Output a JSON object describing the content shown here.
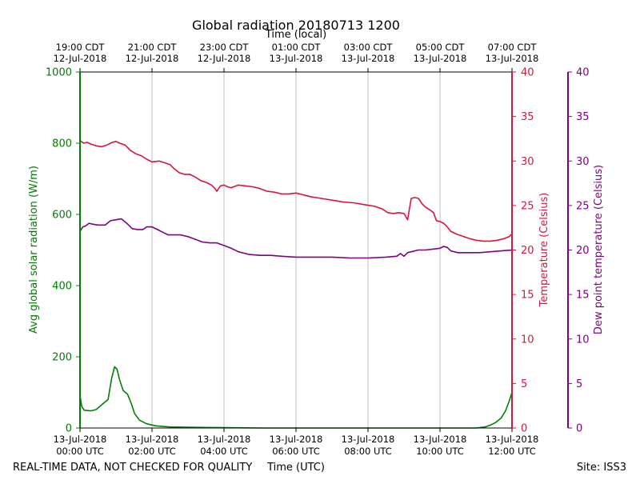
{
  "chart_data": {
    "type": "line",
    "title": "Global radiation 20180713 1200",
    "xlabel_top": "Time (local)",
    "xlabel_bottom": "Time (UTC)",
    "footer_left": "REAL-TIME DATA, NOT CHECKED FOR QUALITY",
    "footer_right": "Site: ISS3",
    "x_range_hours": [
      0,
      12
    ],
    "top_ticks": [
      {
        "h": 0,
        "line1": "19:00 CDT",
        "line2": "12-Jul-2018"
      },
      {
        "h": 2,
        "line1": "21:00 CDT",
        "line2": "12-Jul-2018"
      },
      {
        "h": 4,
        "line1": "23:00 CDT",
        "line2": "12-Jul-2018"
      },
      {
        "h": 6,
        "line1": "01:00 CDT",
        "line2": "13-Jul-2018"
      },
      {
        "h": 8,
        "line1": "03:00 CDT",
        "line2": "13-Jul-2018"
      },
      {
        "h": 10,
        "line1": "05:00 CDT",
        "line2": "13-Jul-2018"
      },
      {
        "h": 12,
        "line1": "07:00 CDT",
        "line2": "13-Jul-2018"
      }
    ],
    "bottom_ticks": [
      {
        "h": 0,
        "line1": "13-Jul-2018",
        "line2": "00:00 UTC"
      },
      {
        "h": 2,
        "line1": "13-Jul-2018",
        "line2": "02:00 UTC"
      },
      {
        "h": 4,
        "line1": "13-Jul-2018",
        "line2": "04:00 UTC"
      },
      {
        "h": 6,
        "line1": "13-Jul-2018",
        "line2": "06:00 UTC"
      },
      {
        "h": 8,
        "line1": "13-Jul-2018",
        "line2": "08:00 UTC"
      },
      {
        "h": 10,
        "line1": "13-Jul-2018",
        "line2": "10:00 UTC"
      },
      {
        "h": 12,
        "line1": "13-Jul-2018",
        "line2": "12:00 UTC"
      }
    ],
    "axes": {
      "radiation": {
        "label": "Avg global solar radiation (W/m)",
        "range": [
          0,
          1000
        ],
        "ticks": [
          0,
          200,
          400,
          600,
          800,
          1000
        ],
        "color": "#008000"
      },
      "temperature": {
        "label": "Temperature (Celsius)",
        "range": [
          0,
          40
        ],
        "ticks": [
          0,
          5,
          10,
          15,
          20,
          25,
          30,
          35,
          40
        ],
        "color": "#dc143c"
      },
      "dewpoint": {
        "label": "Dew point temperature (Celsius)",
        "range": [
          0,
          40
        ],
        "ticks": [
          0,
          5,
          10,
          15,
          20,
          25,
          30,
          35,
          40
        ],
        "color": "#800080"
      }
    },
    "series": [
      {
        "name": "Avg global solar radiation",
        "axis": "radiation",
        "color": "#008000",
        "points": [
          [
            0,
            90
          ],
          [
            0.05,
            60
          ],
          [
            0.12,
            50
          ],
          [
            0.3,
            48
          ],
          [
            0.45,
            52
          ],
          [
            0.6,
            65
          ],
          [
            0.78,
            80
          ],
          [
            0.88,
            140
          ],
          [
            0.96,
            172
          ],
          [
            1.03,
            165
          ],
          [
            1.1,
            135
          ],
          [
            1.2,
            105
          ],
          [
            1.32,
            95
          ],
          [
            1.42,
            70
          ],
          [
            1.52,
            40
          ],
          [
            1.65,
            22
          ],
          [
            1.85,
            12
          ],
          [
            2.1,
            6
          ],
          [
            2.5,
            3
          ],
          [
            3,
            2
          ],
          [
            4,
            1
          ],
          [
            5,
            0
          ],
          [
            6,
            0
          ],
          [
            7,
            0
          ],
          [
            8,
            0
          ],
          [
            9,
            0
          ],
          [
            10,
            0
          ],
          [
            11,
            0
          ],
          [
            11.1,
            1
          ],
          [
            11.25,
            3
          ],
          [
            11.4,
            8
          ],
          [
            11.55,
            16
          ],
          [
            11.7,
            28
          ],
          [
            11.82,
            48
          ],
          [
            11.92,
            75
          ],
          [
            12,
            100
          ]
        ]
      },
      {
        "name": "Temperature",
        "axis": "temperature",
        "color": "#dc143c",
        "points": [
          [
            0,
            32.3
          ],
          [
            0.1,
            32.0
          ],
          [
            0.2,
            32.1
          ],
          [
            0.3,
            31.9
          ],
          [
            0.45,
            31.7
          ],
          [
            0.6,
            31.6
          ],
          [
            0.75,
            31.8
          ],
          [
            0.9,
            32.1
          ],
          [
            1.0,
            32.2
          ],
          [
            1.1,
            32.0
          ],
          [
            1.25,
            31.8
          ],
          [
            1.4,
            31.2
          ],
          [
            1.55,
            30.8
          ],
          [
            1.7,
            30.6
          ],
          [
            1.85,
            30.2
          ],
          [
            2.0,
            29.9
          ],
          [
            2.2,
            30.0
          ],
          [
            2.35,
            29.8
          ],
          [
            2.5,
            29.6
          ],
          [
            2.6,
            29.2
          ],
          [
            2.75,
            28.7
          ],
          [
            2.9,
            28.5
          ],
          [
            3.05,
            28.5
          ],
          [
            3.2,
            28.2
          ],
          [
            3.35,
            27.8
          ],
          [
            3.5,
            27.6
          ],
          [
            3.65,
            27.3
          ],
          [
            3.75,
            26.9
          ],
          [
            3.8,
            26.6
          ],
          [
            3.9,
            27.2
          ],
          [
            4.0,
            27.3
          ],
          [
            4.1,
            27.1
          ],
          [
            4.2,
            27.0
          ],
          [
            4.4,
            27.3
          ],
          [
            4.6,
            27.2
          ],
          [
            4.8,
            27.1
          ],
          [
            5.0,
            26.9
          ],
          [
            5.2,
            26.6
          ],
          [
            5.4,
            26.5
          ],
          [
            5.6,
            26.3
          ],
          [
            5.8,
            26.3
          ],
          [
            6.0,
            26.4
          ],
          [
            6.2,
            26.2
          ],
          [
            6.4,
            26.0
          ],
          [
            6.7,
            25.8
          ],
          [
            7.0,
            25.6
          ],
          [
            7.3,
            25.4
          ],
          [
            7.6,
            25.3
          ],
          [
            7.9,
            25.1
          ],
          [
            8.2,
            24.9
          ],
          [
            8.4,
            24.6
          ],
          [
            8.55,
            24.2
          ],
          [
            8.7,
            24.1
          ],
          [
            8.85,
            24.2
          ],
          [
            9.0,
            24.1
          ],
          [
            9.1,
            23.4
          ],
          [
            9.2,
            25.8
          ],
          [
            9.3,
            25.9
          ],
          [
            9.4,
            25.8
          ],
          [
            9.5,
            25.2
          ],
          [
            9.6,
            24.8
          ],
          [
            9.72,
            24.5
          ],
          [
            9.82,
            24.2
          ],
          [
            9.9,
            23.3
          ],
          [
            10.0,
            23.2
          ],
          [
            10.1,
            23.0
          ],
          [
            10.2,
            22.6
          ],
          [
            10.3,
            22.1
          ],
          [
            10.45,
            21.8
          ],
          [
            10.6,
            21.6
          ],
          [
            10.8,
            21.3
          ],
          [
            11.0,
            21.1
          ],
          [
            11.2,
            21.0
          ],
          [
            11.4,
            21.0
          ],
          [
            11.6,
            21.1
          ],
          [
            11.8,
            21.3
          ],
          [
            11.92,
            21.5
          ],
          [
            12,
            21.8
          ]
        ]
      },
      {
        "name": "Dew point temperature",
        "axis": "dewpoint",
        "color": "#800080",
        "points": [
          [
            0,
            22.1
          ],
          [
            0.08,
            22.6
          ],
          [
            0.15,
            22.7
          ],
          [
            0.25,
            23.0
          ],
          [
            0.35,
            22.9
          ],
          [
            0.5,
            22.8
          ],
          [
            0.7,
            22.8
          ],
          [
            0.85,
            23.3
          ],
          [
            1.0,
            23.4
          ],
          [
            1.15,
            23.5
          ],
          [
            1.3,
            23.0
          ],
          [
            1.45,
            22.4
          ],
          [
            1.6,
            22.3
          ],
          [
            1.75,
            22.3
          ],
          [
            1.85,
            22.6
          ],
          [
            2.0,
            22.6
          ],
          [
            2.15,
            22.3
          ],
          [
            2.3,
            22.0
          ],
          [
            2.45,
            21.7
          ],
          [
            2.6,
            21.7
          ],
          [
            2.8,
            21.7
          ],
          [
            3.0,
            21.5
          ],
          [
            3.2,
            21.2
          ],
          [
            3.4,
            20.9
          ],
          [
            3.6,
            20.8
          ],
          [
            3.8,
            20.8
          ],
          [
            4.0,
            20.5
          ],
          [
            4.2,
            20.2
          ],
          [
            4.4,
            19.8
          ],
          [
            4.7,
            19.5
          ],
          [
            5.0,
            19.4
          ],
          [
            5.3,
            19.4
          ],
          [
            5.6,
            19.3
          ],
          [
            6.0,
            19.2
          ],
          [
            6.5,
            19.2
          ],
          [
            7.0,
            19.2
          ],
          [
            7.5,
            19.1
          ],
          [
            8.0,
            19.1
          ],
          [
            8.5,
            19.2
          ],
          [
            8.8,
            19.3
          ],
          [
            8.9,
            19.6
          ],
          [
            9.0,
            19.3
          ],
          [
            9.1,
            19.7
          ],
          [
            9.2,
            19.8
          ],
          [
            9.4,
            20.0
          ],
          [
            9.6,
            20.0
          ],
          [
            9.8,
            20.1
          ],
          [
            10.0,
            20.2
          ],
          [
            10.1,
            20.4
          ],
          [
            10.2,
            20.3
          ],
          [
            10.3,
            19.9
          ],
          [
            10.5,
            19.7
          ],
          [
            10.8,
            19.7
          ],
          [
            11.1,
            19.7
          ],
          [
            11.4,
            19.8
          ],
          [
            11.7,
            19.9
          ],
          [
            12,
            20.0
          ]
        ]
      }
    ]
  }
}
